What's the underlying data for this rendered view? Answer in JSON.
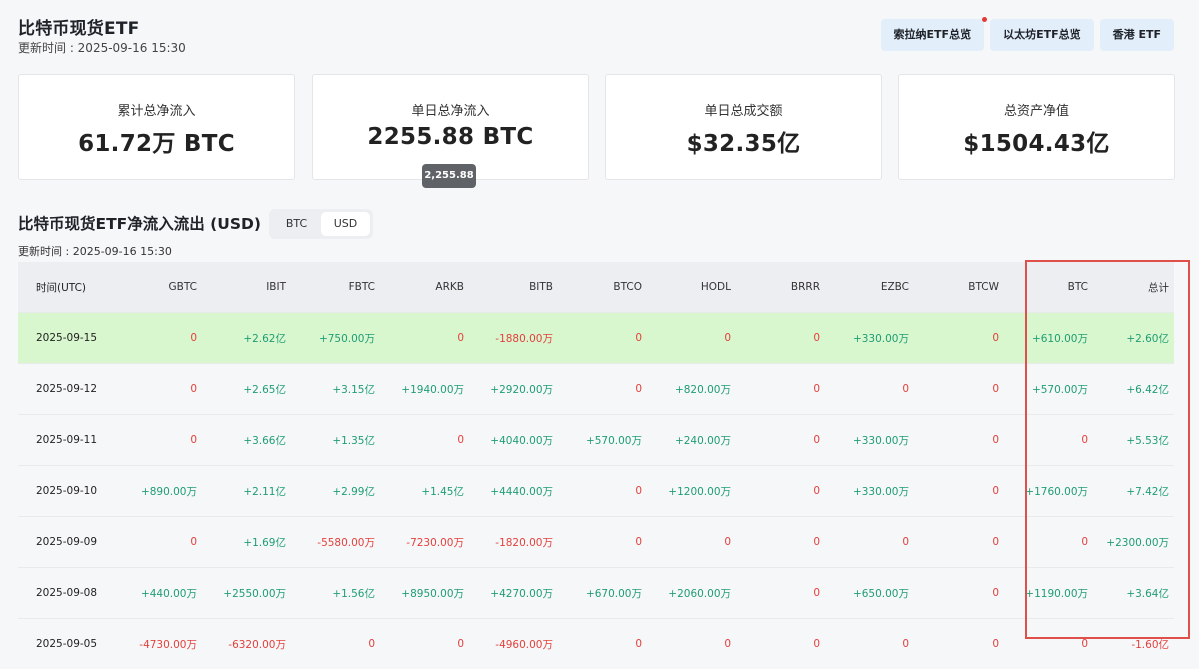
{
  "header": {
    "title": "比特币现货ETF",
    "update_time": "更新时间 : 2025-09-16 15:30",
    "buttons": [
      "索拉纳ETF总览",
      "以太坊ETF总览",
      "香港 ETF"
    ]
  },
  "cards": [
    {
      "label": "累计总净流入",
      "value": "61.72万 BTC"
    },
    {
      "label": "单日总净流入",
      "value": "2255.88 BTC"
    },
    {
      "label": "单日总成交额",
      "value": "$32.35亿"
    },
    {
      "label": "总资产净值",
      "value": "$1504.43亿"
    }
  ],
  "tooltip": "2,255.88",
  "section": {
    "title": "比特币现货ETF净流入流出 (USD)",
    "toggle": [
      "BTC",
      "USD"
    ],
    "active_toggle": "USD",
    "update_time": "更新时间 : 2025-09-16 15:30"
  },
  "table": {
    "headers": [
      "时间(UTC)",
      "GBTC",
      "IBIT",
      "FBTC",
      "ARKB",
      "BITB",
      "BTCO",
      "HODL",
      "BRRR",
      "EZBC",
      "BTCW",
      "BTC",
      "总计"
    ],
    "rows": [
      [
        "2025-09-15",
        "0",
        "+2.62亿",
        "+750.00万",
        "0",
        "-1880.00万",
        "0",
        "0",
        "0",
        "+330.00万",
        "0",
        "+610.00万",
        "+2.60亿"
      ],
      [
        "2025-09-12",
        "0",
        "+2.65亿",
        "+3.15亿",
        "+1940.00万",
        "+2920.00万",
        "0",
        "+820.00万",
        "0",
        "0",
        "0",
        "+570.00万",
        "+6.42亿"
      ],
      [
        "2025-09-11",
        "0",
        "+3.66亿",
        "+1.35亿",
        "0",
        "+4040.00万",
        "+570.00万",
        "+240.00万",
        "0",
        "+330.00万",
        "0",
        "0",
        "+5.53亿"
      ],
      [
        "2025-09-10",
        "+890.00万",
        "+2.11亿",
        "+2.99亿",
        "+1.45亿",
        "+4440.00万",
        "0",
        "+1200.00万",
        "0",
        "+330.00万",
        "0",
        "+1760.00万",
        "+7.42亿"
      ],
      [
        "2025-09-09",
        "0",
        "+1.69亿",
        "-5580.00万",
        "-7230.00万",
        "-1820.00万",
        "0",
        "0",
        "0",
        "0",
        "0",
        "0",
        "+2300.00万"
      ],
      [
        "2025-09-08",
        "+440.00万",
        "+2550.00万",
        "+1.56亿",
        "+8950.00万",
        "+4270.00万",
        "+670.00万",
        "+2060.00万",
        "0",
        "+650.00万",
        "0",
        "+1190.00万",
        "+3.64亿"
      ],
      [
        "2025-09-05",
        "-4730.00万",
        "-6320.00万",
        "0",
        "0",
        "-4960.00万",
        "0",
        "0",
        "0",
        "0",
        "0",
        "0",
        "-1.60亿"
      ]
    ]
  },
  "colors": {
    "positive": "#1f9d74",
    "negative": "#e3413c",
    "highlight_row": "#d9f7cf",
    "annotation_box": "#e0504a"
  }
}
